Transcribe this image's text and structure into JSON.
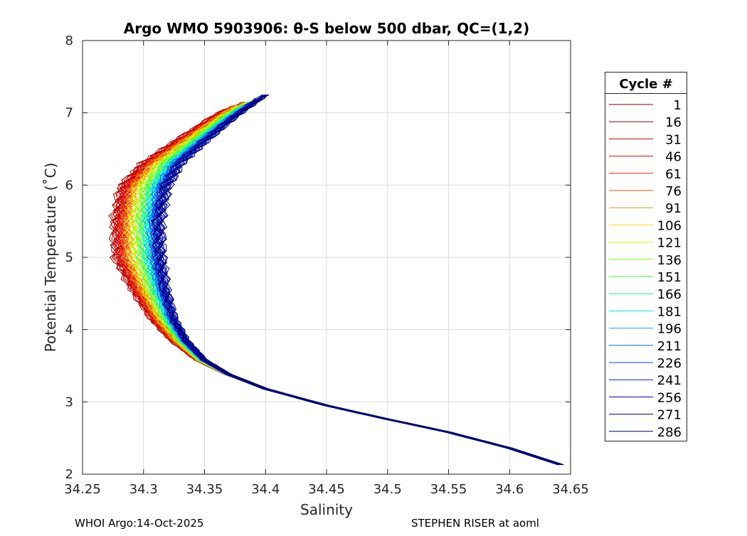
{
  "chart_data": {
    "type": "line",
    "title": "Argo WMO 5903906: θ-S below 500 dbar,  QC=(1,2)",
    "xlabel": "Salinity",
    "ylabel": "Potential Temperature (˚C)",
    "xlim": [
      34.25,
      34.65
    ],
    "ylim": [
      2,
      8
    ],
    "xticks": [
      "34.25",
      "34.3",
      "34.35",
      "34.4",
      "34.45",
      "34.5",
      "34.55",
      "34.6",
      "34.65"
    ],
    "yticks": [
      "2",
      "3",
      "4",
      "5",
      "6",
      "7",
      "8"
    ],
    "grid": true,
    "legend_title": "Cycle #",
    "legend_position": "outside-right",
    "base_curve": [
      [
        34.642,
        2.13
      ],
      [
        34.6,
        2.36
      ],
      [
        34.55,
        2.58
      ],
      [
        34.5,
        2.76
      ],
      [
        34.45,
        2.95
      ],
      [
        34.4,
        3.18
      ],
      [
        34.37,
        3.38
      ],
      [
        34.35,
        3.58
      ],
      [
        34.335,
        3.85
      ],
      [
        34.325,
        4.15
      ],
      [
        34.318,
        4.55
      ],
      [
        34.314,
        5.0
      ],
      [
        34.313,
        5.5
      ],
      [
        34.318,
        5.95
      ],
      [
        34.33,
        6.3
      ],
      [
        34.35,
        6.6
      ],
      [
        34.375,
        6.95
      ],
      [
        34.4,
        7.25
      ]
    ],
    "series": [
      {
        "name": "1",
        "color": "#7f0000",
        "mid_offset": -0.036,
        "top_T": 7.05
      },
      {
        "name": "16",
        "color": "#a00000",
        "mid_offset": -0.035,
        "top_T": 7.05
      },
      {
        "name": "31",
        "color": "#d00000",
        "mid_offset": -0.034,
        "top_T": 7.08
      },
      {
        "name": "46",
        "color": "#e80000",
        "mid_offset": -0.032,
        "top_T": 7.08
      },
      {
        "name": "61",
        "color": "#f02010",
        "mid_offset": -0.03,
        "top_T": 7.1
      },
      {
        "name": "76",
        "color": "#f05010",
        "mid_offset": -0.028,
        "top_T": 7.1
      },
      {
        "name": "91",
        "color": "#f09010",
        "mid_offset": -0.026,
        "top_T": 7.1
      },
      {
        "name": "106",
        "color": "#ffd700",
        "mid_offset": -0.024,
        "top_T": 7.1
      },
      {
        "name": "121",
        "color": "#c8ff00",
        "mid_offset": -0.02,
        "top_T": 7.12
      },
      {
        "name": "136",
        "color": "#80ff00",
        "mid_offset": -0.017,
        "top_T": 7.12
      },
      {
        "name": "151",
        "color": "#30ff40",
        "mid_offset": -0.014,
        "top_T": 7.1
      },
      {
        "name": "166",
        "color": "#00ff90",
        "mid_offset": -0.011,
        "top_T": 7.1
      },
      {
        "name": "181",
        "color": "#00e8e8",
        "mid_offset": -0.009,
        "top_T": 7.12
      },
      {
        "name": "196",
        "color": "#00a8ff",
        "mid_offset": -0.007,
        "top_T": 7.13
      },
      {
        "name": "211",
        "color": "#0070e0",
        "mid_offset": -0.005,
        "top_T": 7.15
      },
      {
        "name": "226",
        "color": "#0040e0",
        "mid_offset": -0.003,
        "top_T": 7.2
      },
      {
        "name": "241",
        "color": "#0020d0",
        "mid_offset": -0.002,
        "top_T": 7.2
      },
      {
        "name": "256",
        "color": "#0000c0",
        "mid_offset": -0.001,
        "top_T": 7.22
      },
      {
        "name": "271",
        "color": "#000090",
        "mid_offset": 0.0,
        "top_T": 7.25
      },
      {
        "name": "286",
        "color": "#000070",
        "mid_offset": 0.0,
        "top_T": 7.25
      }
    ]
  },
  "footer": {
    "left": "WHOI Argo:14-Oct-2025",
    "right": "STEPHEN RISER at aoml"
  }
}
